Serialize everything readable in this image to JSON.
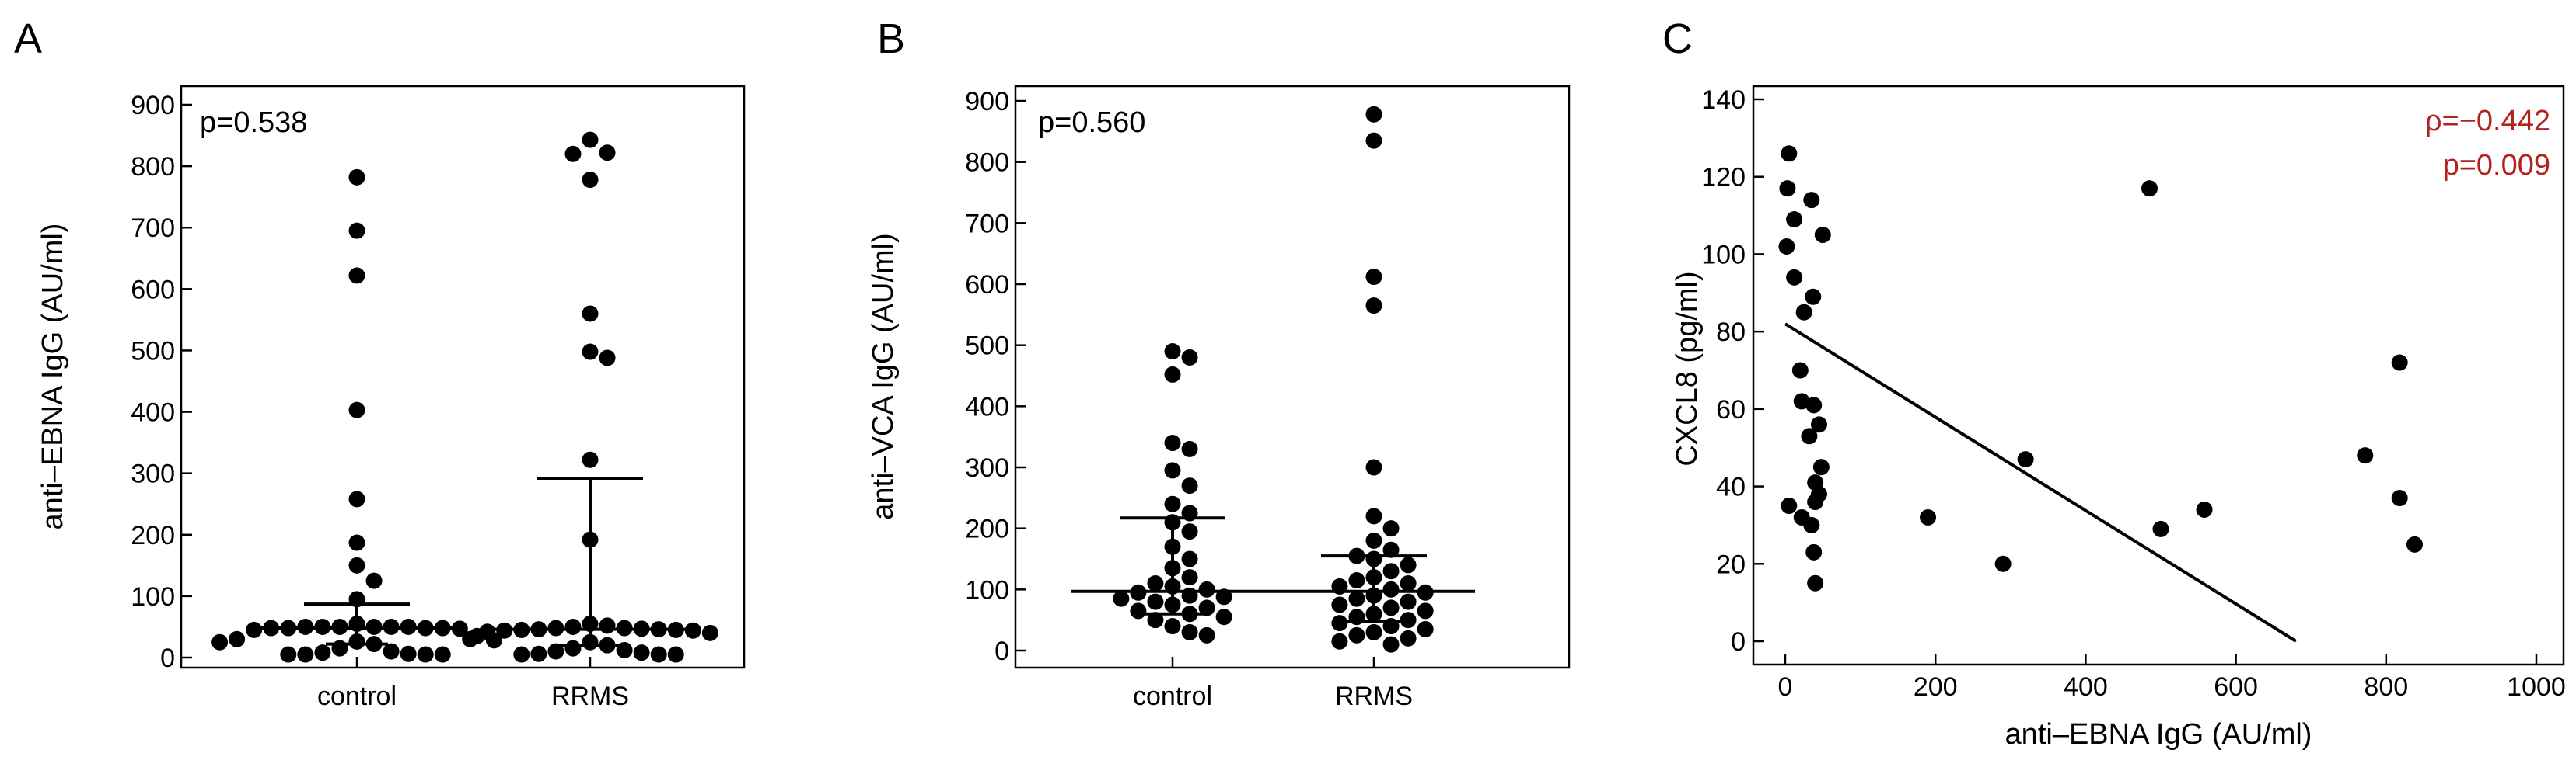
{
  "colors": {
    "points": "#000000",
    "annotation_red": "#b2221e"
  },
  "chart_data": [
    {
      "panel": "A",
      "type": "scatter",
      "subtype": "dot-plot with median and interquartile range",
      "ylabel": "anti–EBNA IgG (AU/ml)",
      "ylim": [
        0,
        900
      ],
      "yticks": [
        0,
        100,
        200,
        300,
        400,
        500,
        600,
        700,
        800,
        900
      ],
      "categories": [
        "control",
        "RRMS"
      ],
      "annotation": "p=0.538",
      "groups": [
        {
          "name": "control",
          "median": 48,
          "q1": 22,
          "q3": 87,
          "values": [
            782,
            695,
            622,
            403,
            258,
            187,
            150,
            125,
            95,
            55,
            50,
            50,
            50,
            50,
            50,
            50,
            48,
            48,
            48,
            48,
            47,
            45,
            35,
            30,
            28,
            26,
            25,
            22,
            15,
            10,
            8,
            6,
            5,
            5,
            5,
            5
          ]
        },
        {
          "name": "RRMS",
          "median": 46,
          "q1": 20,
          "q3": 292,
          "values": [
            843,
            822,
            820,
            778,
            560,
            498,
            488,
            322,
            192,
            55,
            52,
            50,
            48,
            48,
            47,
            46,
            46,
            45,
            45,
            44,
            44,
            42,
            40,
            30,
            25,
            20,
            15,
            12,
            10,
            8,
            6,
            5,
            5,
            5
          ]
        }
      ]
    },
    {
      "panel": "B",
      "type": "scatter",
      "subtype": "dot-plot with median and interquartile range",
      "ylabel": "anti–VCA IgG (AU/ml)",
      "ylim": [
        0,
        900
      ],
      "yticks": [
        0,
        100,
        200,
        300,
        400,
        500,
        600,
        700,
        800,
        900
      ],
      "categories": [
        "control",
        "RRMS"
      ],
      "annotation": "p=0.560",
      "groups": [
        {
          "name": "control",
          "median": 97,
          "q1": 60,
          "q3": 217,
          "values": [
            490,
            480,
            452,
            340,
            330,
            295,
            270,
            240,
            225,
            210,
            195,
            170,
            150,
            135,
            120,
            110,
            105,
            100,
            95,
            90,
            88,
            85,
            80,
            75,
            70,
            65,
            60,
            55,
            50,
            40,
            30,
            25
          ]
        },
        {
          "name": "RRMS",
          "median": 97,
          "q1": 47,
          "q3": 155,
          "values": [
            878,
            835,
            612,
            565,
            300,
            220,
            200,
            180,
            165,
            155,
            150,
            140,
            130,
            120,
            115,
            110,
            105,
            100,
            95,
            90,
            85,
            80,
            75,
            70,
            65,
            60,
            55,
            50,
            45,
            40,
            35,
            30,
            25,
            20,
            15,
            10
          ]
        }
      ]
    },
    {
      "panel": "C",
      "type": "scatter",
      "xlabel": "anti–EBNA IgG (AU/ml)",
      "ylabel": "CXCL8 (pg/ml)",
      "xlim": [
        -20,
        1030
      ],
      "ylim": [
        -5,
        140
      ],
      "xticks": [
        0,
        200,
        400,
        600,
        800,
        1000
      ],
      "yticks": [
        0,
        20,
        40,
        60,
        80,
        100,
        120,
        140
      ],
      "annotations": [
        "ρ=−0.442",
        "p=0.009"
      ],
      "regression_line": {
        "x": [
          0,
          680
        ],
        "y": [
          82,
          0
        ]
      },
      "points": [
        {
          "x": 5,
          "y": 126
        },
        {
          "x": 3,
          "y": 117
        },
        {
          "x": 35,
          "y": 114
        },
        {
          "x": 12,
          "y": 109
        },
        {
          "x": 50,
          "y": 105
        },
        {
          "x": 2,
          "y": 102
        },
        {
          "x": 12,
          "y": 94
        },
        {
          "x": 37,
          "y": 89
        },
        {
          "x": 25,
          "y": 85
        },
        {
          "x": 20,
          "y": 70
        },
        {
          "x": 22,
          "y": 62
        },
        {
          "x": 38,
          "y": 61
        },
        {
          "x": 45,
          "y": 56
        },
        {
          "x": 32,
          "y": 53
        },
        {
          "x": 48,
          "y": 45
        },
        {
          "x": 40,
          "y": 41
        },
        {
          "x": 45,
          "y": 38
        },
        {
          "x": 40,
          "y": 36
        },
        {
          "x": 5,
          "y": 35
        },
        {
          "x": 22,
          "y": 32
        },
        {
          "x": 35,
          "y": 30
        },
        {
          "x": 38,
          "y": 23
        },
        {
          "x": 40,
          "y": 15
        },
        {
          "x": 485,
          "y": 117
        },
        {
          "x": 320,
          "y": 47
        },
        {
          "x": 190,
          "y": 32
        },
        {
          "x": 290,
          "y": 20
        },
        {
          "x": 500,
          "y": 29
        },
        {
          "x": 558,
          "y": 34
        },
        {
          "x": 772,
          "y": 48
        },
        {
          "x": 818,
          "y": 72
        },
        {
          "x": 818,
          "y": 37
        },
        {
          "x": 838,
          "y": 25
        }
      ]
    }
  ]
}
